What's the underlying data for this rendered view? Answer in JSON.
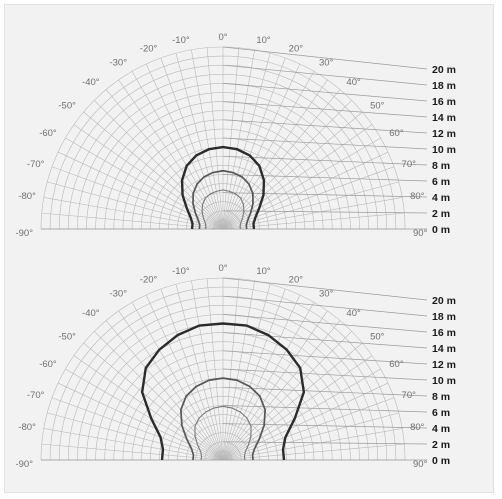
{
  "diagrams": [
    {
      "id": "top",
      "angle_labels": [
        "-90°",
        "-80°",
        "-70°",
        "-60°",
        "-50°",
        "-40°",
        "-30°",
        "-20°",
        "-10°",
        "0°",
        "10°",
        "20°",
        "30°",
        "40°",
        "50°",
        "60°",
        "70°",
        "80°",
        "90°"
      ],
      "distance_labels": [
        "0 m",
        "2 m",
        "4 m",
        "6 m",
        "8 m",
        "10 m",
        "12 m",
        "14 m",
        "16 m",
        "18 m",
        "20 m"
      ],
      "outer_outline_m": [
        3.4,
        3.4,
        3.8,
        4.6,
        5.8,
        7.0,
        8.0,
        8.6,
        8.9,
        9.0,
        8.9,
        8.6,
        8.0,
        7.0,
        5.8,
        4.6,
        3.8,
        3.4,
        3.4
      ],
      "mid_outline_m": [
        2.6,
        2.6,
        2.9,
        3.5,
        4.3,
        5.1,
        5.7,
        6.1,
        6.3,
        6.4,
        6.3,
        6.1,
        5.7,
        5.1,
        4.3,
        3.5,
        2.9,
        2.6,
        2.6
      ],
      "inner_outline_m": [
        1.9,
        1.9,
        2.1,
        2.5,
        3.0,
        3.5,
        3.9,
        4.1,
        4.2,
        4.3,
        4.2,
        4.1,
        3.9,
        3.5,
        3.0,
        2.5,
        2.1,
        1.9,
        1.9
      ]
    },
    {
      "id": "bottom",
      "angle_labels": [
        "-90°",
        "-80°",
        "-70°",
        "-60°",
        "-50°",
        "-40°",
        "-30°",
        "-20°",
        "-10°",
        "0°",
        "10°",
        "20°",
        "30°",
        "40°",
        "50°",
        "60°",
        "70°",
        "80°",
        "90°"
      ],
      "distance_labels": [
        "0 m",
        "2 m",
        "4 m",
        "6 m",
        "8 m",
        "10 m",
        "12 m",
        "14 m",
        "16 m",
        "18 m",
        "20 m"
      ],
      "outer_outline_m": [
        6.7,
        6.7,
        7.3,
        9.1,
        11.6,
        13.2,
        14.0,
        14.6,
        15.0,
        15.0,
        15.0,
        14.6,
        14.0,
        13.2,
        11.6,
        9.1,
        7.3,
        6.7,
        6.7
      ],
      "mid_outline_m": [
        3.3,
        3.3,
        3.7,
        4.6,
        5.9,
        7.2,
        8.1,
        8.6,
        8.9,
        9.0,
        8.9,
        8.6,
        8.1,
        7.2,
        5.9,
        4.6,
        3.7,
        3.3,
        3.3
      ],
      "inner_outline_m": [
        2.4,
        2.4,
        2.6,
        3.2,
        4.0,
        4.8,
        5.3,
        5.6,
        5.8,
        5.9,
        5.8,
        5.6,
        5.3,
        4.8,
        4.0,
        3.2,
        2.6,
        2.4,
        2.4
      ]
    }
  ]
}
